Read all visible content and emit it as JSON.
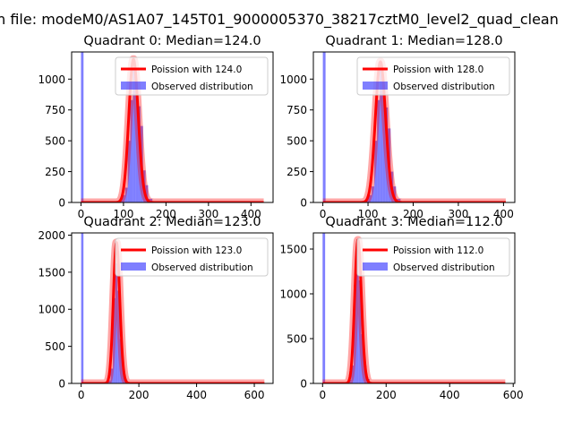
{
  "figure": {
    "suptitle": "n file: modeM0/AS1A07_145T01_9000005370_38217cztM0_level2_quad_clean"
  },
  "colors": {
    "poisson_line": "#ff0000",
    "observed_fill": "#0000ff",
    "axes_edge": "#000000",
    "background": "#ffffff"
  },
  "chart_data": [
    {
      "type": "bar",
      "title": "Quadrant 0: Median=124.0",
      "xlabel": "",
      "ylabel": "",
      "xlim": [
        -22,
        452
      ],
      "ylim": [
        0,
        1220
      ],
      "xticks": [
        0,
        100,
        200,
        300,
        400
      ],
      "yticks": [
        0,
        250,
        500,
        750,
        1000
      ],
      "grid": false,
      "legend_position": "upper right",
      "series": [
        {
          "name": "Poission with 124.0",
          "kind": "line",
          "mean": 124.0,
          "peak": 1160,
          "x_range": [
            0,
            430
          ]
        },
        {
          "name": "Observed distribution",
          "kind": "histogram",
          "bins": [
            [
              0,
              6,
              1220
            ],
            [
              74,
              84,
              2
            ],
            [
              84,
              94,
              10
            ],
            [
              94,
              104,
              60
            ],
            [
              104,
              110,
              120
            ],
            [
              110,
              116,
              500
            ],
            [
              116,
              122,
              830
            ],
            [
              122,
              128,
              1090
            ],
            [
              128,
              134,
              950
            ],
            [
              134,
              140,
              780
            ],
            [
              140,
              146,
              620
            ],
            [
              146,
              152,
              260
            ],
            [
              152,
              158,
              140
            ],
            [
              158,
              168,
              30
            ],
            [
              168,
              180,
              5
            ]
          ]
        }
      ]
    },
    {
      "type": "bar",
      "title": "Quadrant 1: Median=128.0",
      "xlabel": "",
      "ylabel": "",
      "xlim": [
        -21,
        425
      ],
      "ylim": [
        0,
        1220
      ],
      "xticks": [
        0,
        100,
        200,
        300,
        400
      ],
      "yticks": [
        0,
        250,
        500,
        750,
        1000
      ],
      "grid": false,
      "legend_position": "upper right",
      "series": [
        {
          "name": "Poission with 128.0",
          "kind": "line",
          "mean": 128.0,
          "peak": 1140,
          "x_range": [
            0,
            405
          ]
        },
        {
          "name": "Observed distribution",
          "kind": "histogram",
          "bins": [
            [
              0,
              6,
              1220
            ],
            [
              78,
              88,
              2
            ],
            [
              88,
              98,
              10
            ],
            [
              98,
              108,
              60
            ],
            [
              108,
              114,
              130
            ],
            [
              114,
              120,
              500
            ],
            [
              120,
              126,
              830
            ],
            [
              126,
              132,
              1080
            ],
            [
              132,
              138,
              950
            ],
            [
              138,
              144,
              770
            ],
            [
              144,
              150,
              600
            ],
            [
              150,
              156,
              250
            ],
            [
              156,
              162,
              130
            ],
            [
              162,
              172,
              30
            ],
            [
              172,
              184,
              5
            ]
          ]
        }
      ]
    },
    {
      "type": "bar",
      "title": "Quadrant 2: Median=123.0",
      "xlabel": "",
      "ylabel": "",
      "xlim": [
        -33,
        665
      ],
      "ylim": [
        0,
        2030
      ],
      "xticks": [
        0,
        200,
        400,
        600
      ],
      "yticks": [
        0,
        500,
        1000,
        1500,
        2000
      ],
      "grid": false,
      "legend_position": "upper right",
      "series": [
        {
          "name": "Poission with 123.0",
          "kind": "line",
          "mean": 123.0,
          "peak": 1900,
          "x_range": [
            0,
            635
          ]
        },
        {
          "name": "Observed distribution",
          "kind": "histogram",
          "bins": [
            [
              0,
              8,
              2030
            ],
            [
              82,
              92,
              5
            ],
            [
              92,
              102,
              40
            ],
            [
              102,
              110,
              200
            ],
            [
              110,
              118,
              1150
            ],
            [
              118,
              126,
              1620
            ],
            [
              126,
              134,
              1250
            ],
            [
              134,
              142,
              600
            ],
            [
              142,
              150,
              200
            ],
            [
              150,
              160,
              50
            ],
            [
              160,
              172,
              8
            ]
          ]
        }
      ]
    },
    {
      "type": "bar",
      "title": "Quadrant 3: Median=112.0",
      "xlabel": "",
      "ylabel": "",
      "xlim": [
        -29,
        605
      ],
      "ylim": [
        0,
        1680
      ],
      "xticks": [
        0,
        200,
        400,
        600
      ],
      "yticks": [
        0,
        500,
        1000,
        1500
      ],
      "grid": false,
      "legend_position": "upper right",
      "series": [
        {
          "name": "Poission with 112.0",
          "kind": "line",
          "mean": 112.0,
          "peak": 1600,
          "x_range": [
            0,
            575
          ]
        },
        {
          "name": "Observed distribution",
          "kind": "histogram",
          "bins": [
            [
              0,
              8,
              1680
            ],
            [
              70,
              80,
              5
            ],
            [
              80,
              90,
              40
            ],
            [
              90,
              98,
              200
            ],
            [
              98,
              106,
              1100
            ],
            [
              106,
              114,
              1500
            ],
            [
              114,
              122,
              1150
            ],
            [
              122,
              130,
              550
            ],
            [
              130,
              138,
              200
            ],
            [
              138,
              148,
              50
            ],
            [
              148,
              160,
              8
            ]
          ]
        }
      ]
    }
  ]
}
